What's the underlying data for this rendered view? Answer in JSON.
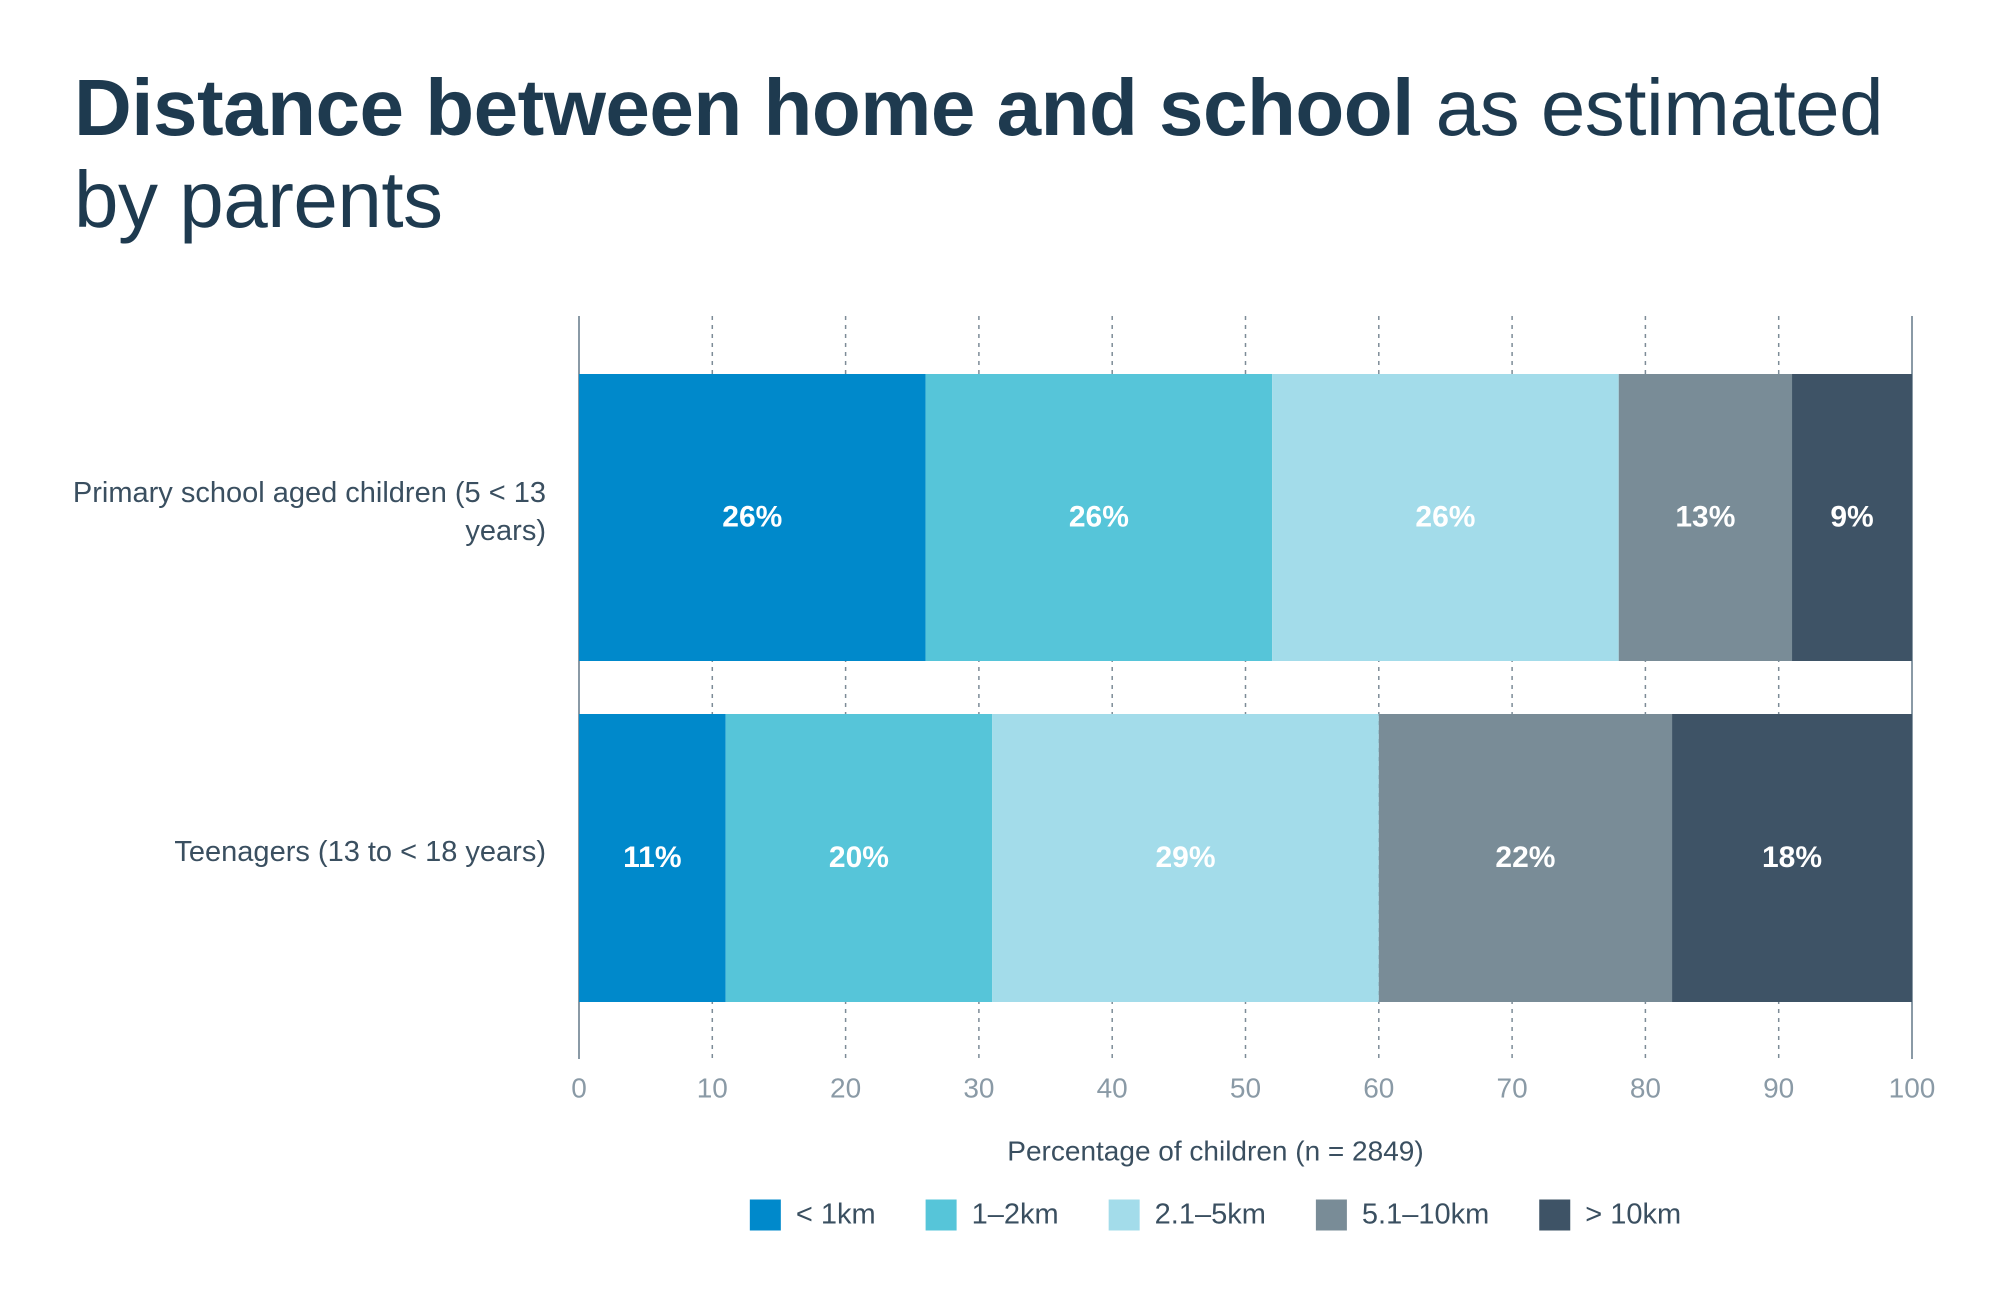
{
  "chart_data": {
    "type": "stacked-bar-horizontal",
    "title": "Distance between home and school",
    "title_suffix": "as estimated by parents",
    "categories": [
      "Primary school aged children (5 < 13 years)",
      "Teenagers (13 to < 18 years)"
    ],
    "series": [
      {
        "name": "< 1km",
        "color": "#0089cb",
        "values": [
          26,
          11
        ],
        "value_labels": [
          "26%",
          "11%"
        ]
      },
      {
        "name": "1–2km",
        "color": "#56c5d9",
        "values": [
          26,
          20
        ],
        "value_labels": [
          "26%",
          "20%"
        ]
      },
      {
        "name": "2.1–5km",
        "color": "#a3dcea",
        "values": [
          26,
          29
        ],
        "value_labels": [
          "26%",
          "29%"
        ]
      },
      {
        "name": "5.1–10km",
        "color": "#798c97",
        "values": [
          13,
          22
        ],
        "value_labels": [
          "13%",
          "22%"
        ]
      },
      {
        "name": "> 10km",
        "color": "#3e5366",
        "values": [
          9,
          18
        ],
        "value_labels": [
          "9%",
          "18%"
        ]
      }
    ],
    "x_label": "Percentage of children (n = 2849)",
    "xlim": [
      0,
      100
    ],
    "xticks": [
      0,
      10,
      20,
      30,
      40,
      50,
      60,
      70,
      80,
      90,
      100
    ],
    "grid": true,
    "legend": "bottom"
  }
}
